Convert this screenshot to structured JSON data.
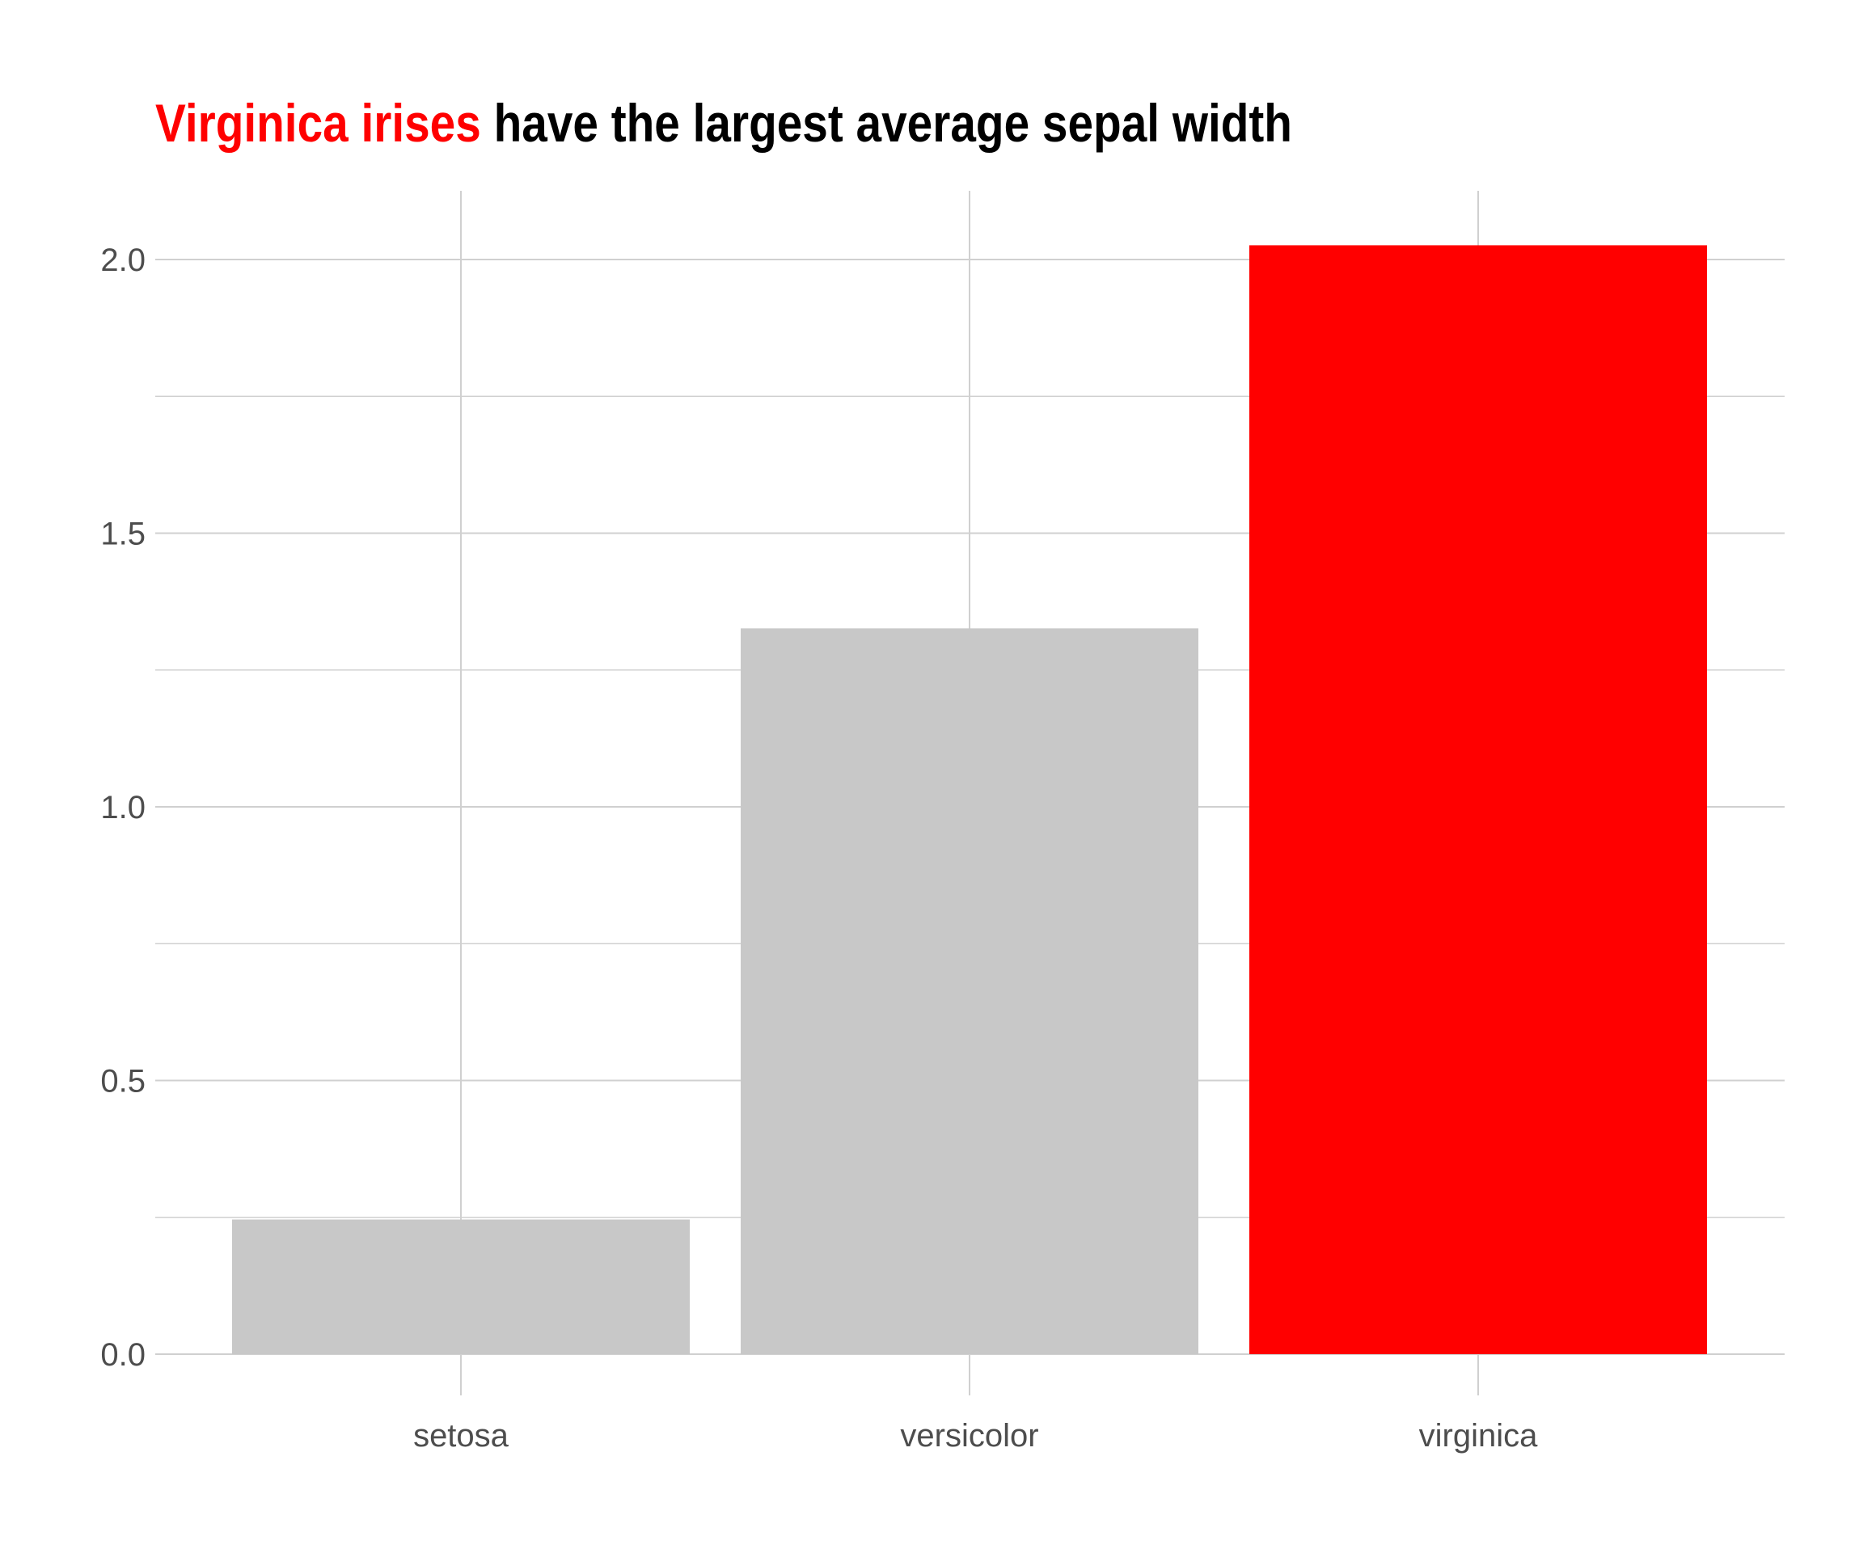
{
  "chart_data": {
    "type": "bar",
    "title": {
      "highlight": "Virginica irises",
      "rest": " have the largest average sepal width"
    },
    "xlabel": "",
    "ylabel": "",
    "categories": [
      "setosa",
      "versicolor",
      "virginica"
    ],
    "values": [
      0.246,
      1.326,
      2.026
    ],
    "colors": [
      "#c8c8c8",
      "#c8c8c8",
      "#ff0000"
    ],
    "ylim": [
      0,
      2.13
    ],
    "yticks": [
      {
        "value": 0.0,
        "label": "0.0"
      },
      {
        "value": 0.5,
        "label": "0.5"
      },
      {
        "value": 1.0,
        "label": "1.0"
      },
      {
        "value": 1.5,
        "label": "1.5"
      },
      {
        "value": 2.0,
        "label": "2.0"
      }
    ],
    "grid": true,
    "legend": "none"
  }
}
